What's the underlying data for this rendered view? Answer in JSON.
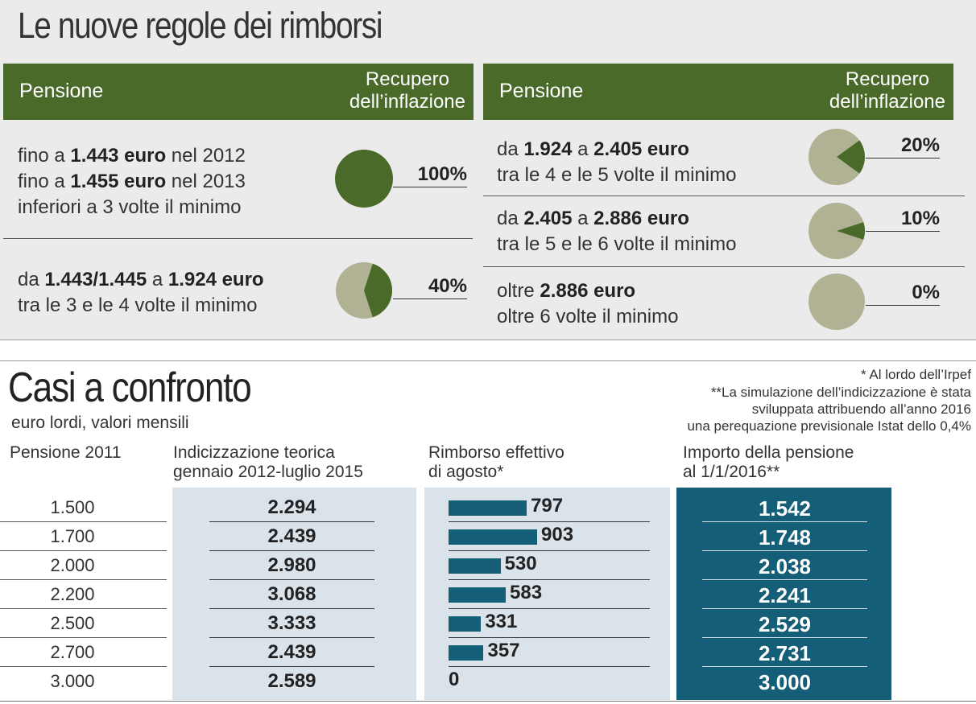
{
  "top": {
    "title": "Le nuove regole dei rimborsi",
    "header": {
      "pension": "Pensione",
      "recovery_l1": "Recupero",
      "recovery_l2": "dell’inflazione"
    }
  },
  "brackets": [
    {
      "lines": [
        [
          {
            "t": "fino a ",
            "b": false
          },
          {
            "t": "1.443 euro",
            "b": true
          },
          {
            "t": " nel 2012",
            "b": false
          }
        ],
        [
          {
            "t": "fino a ",
            "b": false
          },
          {
            "t": "1.455 euro",
            "b": true
          },
          {
            "t": " nel 2013",
            "b": false
          }
        ],
        [
          {
            "t": "inferiori a 3 volte il minimo",
            "b": false
          }
        ]
      ],
      "pct": "100%",
      "share": 1.0
    },
    {
      "lines": [
        [
          {
            "t": "da ",
            "b": false
          },
          {
            "t": "1.443/1.445",
            "b": true
          },
          {
            "t": " a ",
            "b": false
          },
          {
            "t": "1.924 euro",
            "b": true
          }
        ],
        [
          {
            "t": "tra le 3 e le 4 volte il minimo",
            "b": false
          }
        ]
      ],
      "pct": "40%",
      "share": 0.4
    },
    {
      "lines": [
        [
          {
            "t": "da ",
            "b": false
          },
          {
            "t": "1.924",
            "b": true
          },
          {
            "t": " a ",
            "b": false
          },
          {
            "t": "2.405 euro",
            "b": true
          }
        ],
        [
          {
            "t": "tra le 4 e le 5 volte il minimo",
            "b": false
          }
        ]
      ],
      "pct": "20%",
      "share": 0.2
    },
    {
      "lines": [
        [
          {
            "t": "da ",
            "b": false
          },
          {
            "t": "2.405",
            "b": true
          },
          {
            "t": " a ",
            "b": false
          },
          {
            "t": "2.886 euro",
            "b": true
          }
        ],
        [
          {
            "t": "tra le 5 e le 6 volte il minimo",
            "b": false
          }
        ]
      ],
      "pct": "10%",
      "share": 0.1
    },
    {
      "lines": [
        [
          {
            "t": "oltre ",
            "b": false
          },
          {
            "t": "2.886 euro",
            "b": true
          }
        ],
        [
          {
            "t": "oltre 6 volte il minimo",
            "b": false
          }
        ]
      ],
      "pct": "0%",
      "share": 0.0
    }
  ],
  "compare": {
    "title": "Casi a confronto",
    "subtitle": "euro lordi, valori mensili",
    "note1": "* Al lordo dell’Irpef",
    "note2": [
      "**La simulazione dell’indicizzazione è stata",
      "sviluppata attribuendo all’anno 2016",
      "una perequazione previsionale Istat dello 0,4%"
    ],
    "col1": "Pensione 2011",
    "col2": [
      "Indicizzazione teorica",
      "gennaio 2012-luglio 2015"
    ],
    "col3": [
      "Rimborso effettivo",
      "di agosto*"
    ],
    "col4": [
      "Importo della pensione",
      "al 1/1/2016**"
    ]
  },
  "chart_data": {
    "type": "table",
    "rows": [
      {
        "pensione_2011": "1.500",
        "indicizzazione": "2.294",
        "rimborso": "797",
        "rimborso_value": 797,
        "importo": "1.542"
      },
      {
        "pensione_2011": "1.700",
        "indicizzazione": "2.439",
        "rimborso": "903",
        "rimborso_value": 903,
        "importo": "1.748"
      },
      {
        "pensione_2011": "2.000",
        "indicizzazione": "2.980",
        "rimborso": "530",
        "rimborso_value": 530,
        "importo": "2.038"
      },
      {
        "pensione_2011": "2.200",
        "indicizzazione": "3.068",
        "rimborso": "583",
        "rimborso_value": 583,
        "importo": "2.241"
      },
      {
        "pensione_2011": "2.500",
        "indicizzazione": "3.333",
        "rimborso": "331",
        "rimborso_value": 331,
        "importo": "2.529"
      },
      {
        "pensione_2011": "2.700",
        "indicizzazione": "2.439",
        "rimborso": "357",
        "rimborso_value": 357,
        "importo": "2.731"
      },
      {
        "pensione_2011": "3.000",
        "indicizzazione": "2.589",
        "rimborso": "0",
        "rimborso_value": 0,
        "importo": "3.000"
      }
    ]
  },
  "colors": {
    "green": "#4a6a2a",
    "pie_light": "#b1b193",
    "blue": "#155e78",
    "panel": "#dbe3ea"
  }
}
